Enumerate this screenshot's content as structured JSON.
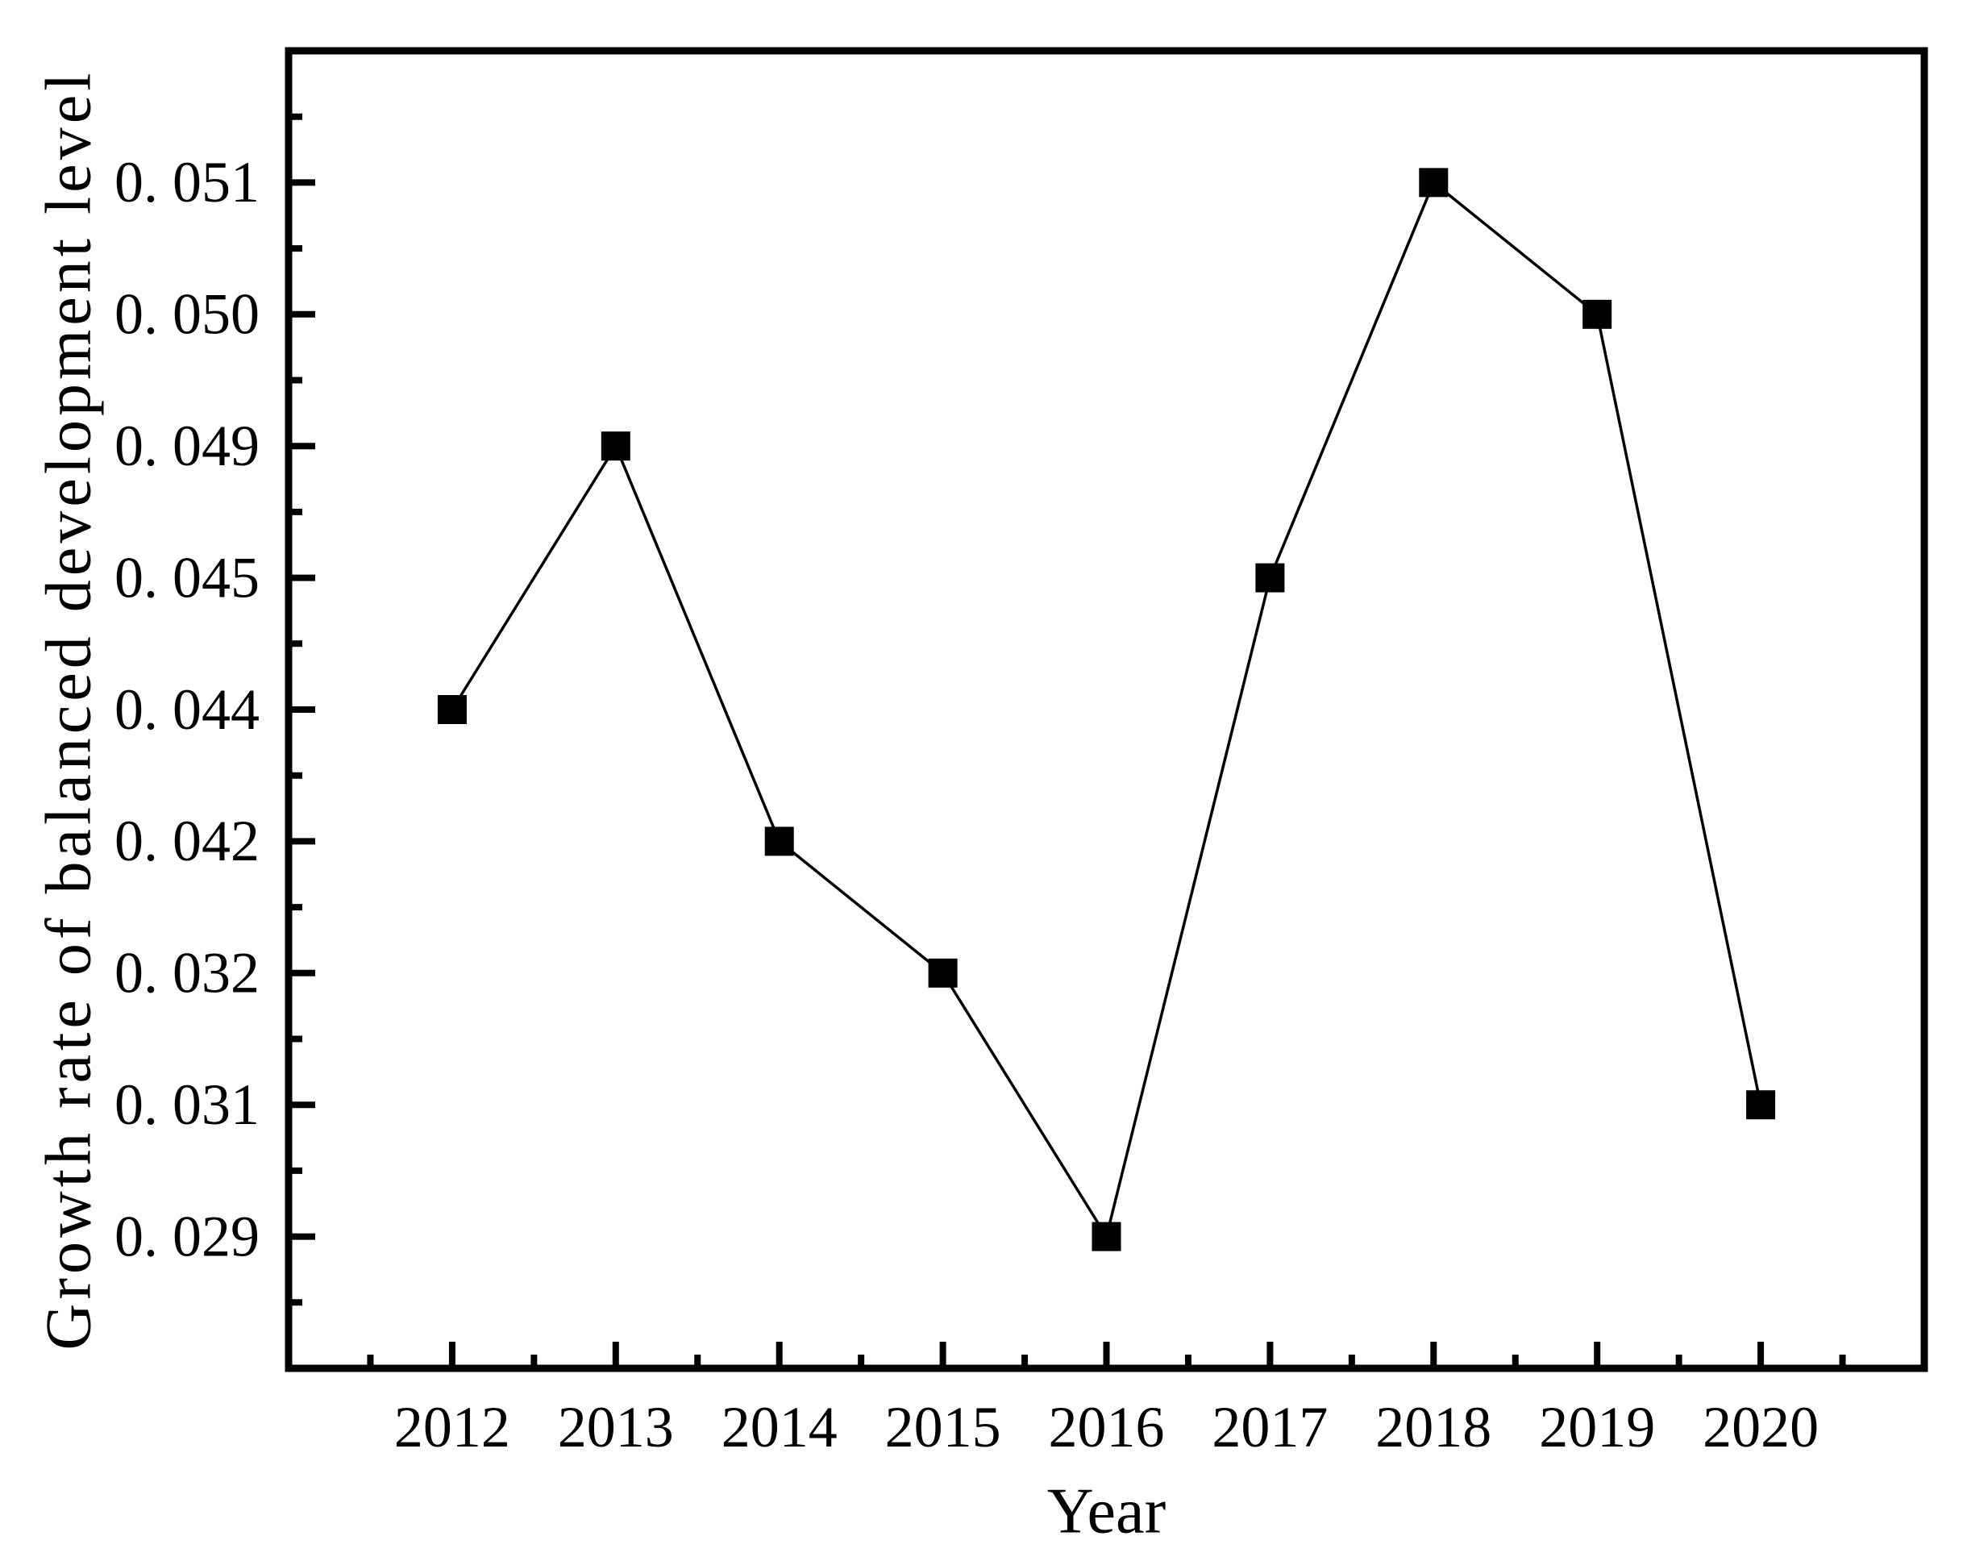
{
  "figure": {
    "background_color": "#ffffff",
    "axis_color": "#000000"
  },
  "chart_data": {
    "type": "line",
    "title": "",
    "x_axis": {
      "label": "Year",
      "tick_labels": [
        "2012",
        "2013",
        "2014",
        "2015",
        "2016",
        "2017",
        "2018",
        "2019",
        "2020"
      ]
    },
    "y_axis": {
      "label": "Growth rate of balanced development level",
      "tick_labels_top_to_bottom": [
        "0. 051",
        "0. 050",
        "0. 049",
        "0. 045",
        "0. 044",
        "0. 042",
        "0. 032",
        "0. 031",
        "0. 029"
      ],
      "scale": "ordinal-evenly-spaced-ticks",
      "minor_ticks_between_majors": true
    },
    "grid": false,
    "legend": null,
    "series": [
      {
        "name": "",
        "marker": "filled-square",
        "color": "#000000",
        "x": [
          2012,
          2013,
          2014,
          2015,
          2016,
          2017,
          2018,
          2019,
          2020
        ],
        "values": [
          0.044,
          0.049,
          0.042,
          0.032,
          0.029,
          0.045,
          0.051,
          0.05,
          0.031
        ]
      }
    ]
  }
}
